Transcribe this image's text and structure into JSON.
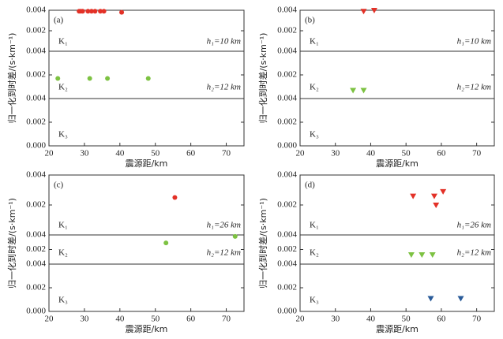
{
  "chart_data": [
    {
      "type": "scatter",
      "label": "(a)",
      "xlabel": "震源距/km",
      "ylabel": "归一化到时差/(s·km⁻¹)",
      "xlim": [
        20,
        75
      ],
      "xticks": [
        20,
        30,
        40,
        50,
        60,
        70
      ],
      "subplots": [
        {
          "name": "K₁",
          "annotation": "h₁=10 km",
          "ylim": [
            0,
            0.004
          ],
          "yticks": [
            {
              "value": 0.002,
              "label": "0.002"
            },
            {
              "value": 0.004,
              "label": "0.004"
            }
          ],
          "series": [
            {
              "color": "#e33127",
              "marker": "circle",
              "x": [
                28.5,
                29,
                29.5,
                31,
                32,
                33,
                34.5,
                35.5,
                40.5
              ],
              "values": [
                0.0039,
                0.0039,
                0.0039,
                0.0039,
                0.0039,
                0.0039,
                0.0039,
                0.0039,
                0.0038
              ]
            }
          ]
        },
        {
          "name": "K₂",
          "annotation": "h₂=12 km",
          "ylim": [
            0,
            0.004
          ],
          "yticks": [
            {
              "value": 0.002,
              "label": "0.002"
            },
            {
              "value": 0.004,
              "label": "0.004"
            }
          ],
          "series": [
            {
              "color": "#7dc242",
              "marker": "circle",
              "x": [
                22.5,
                31.5,
                36.5,
                48
              ],
              "values": [
                0.0017,
                0.0017,
                0.0017,
                0.0017
              ]
            }
          ]
        },
        {
          "name": "K₃",
          "ylim": [
            0,
            0.004
          ],
          "yticks": [
            {
              "value": 0,
              "label": "0.000"
            },
            {
              "value": 0.002,
              "label": "0.002"
            },
            {
              "value": 0.004,
              "label": "0.004"
            }
          ],
          "series": []
        }
      ]
    },
    {
      "type": "scatter",
      "label": "(b)",
      "xlabel": "震源距/km",
      "ylabel": "归一化到时差/(s·km⁻¹)",
      "xlim": [
        20,
        75
      ],
      "xticks": [
        20,
        30,
        40,
        50,
        60,
        70
      ],
      "subplots": [
        {
          "name": "K₁",
          "annotation": "h₁=10 km",
          "ylim": [
            0,
            0.004
          ],
          "yticks": [
            {
              "value": 0.002,
              "label": "0.002"
            },
            {
              "value": 0.004,
              "label": "0.004"
            }
          ],
          "series": [
            {
              "color": "#e33127",
              "marker": "triangle",
              "x": [
                38,
                41
              ],
              "values": [
                0.0039,
                0.004
              ]
            }
          ]
        },
        {
          "name": "K₂",
          "annotation": "h₂=12 km",
          "ylim": [
            0,
            0.004
          ],
          "yticks": [
            {
              "value": 0.002,
              "label": "0.002"
            },
            {
              "value": 0.004,
              "label": "0.004"
            }
          ],
          "series": [
            {
              "color": "#7dc242",
              "marker": "triangle",
              "x": [
                35,
                38
              ],
              "values": [
                0.0007,
                0.0007
              ]
            }
          ]
        },
        {
          "name": "K₃",
          "ylim": [
            0,
            0.004
          ],
          "yticks": [
            {
              "value": 0,
              "label": "0.000"
            },
            {
              "value": 0.002,
              "label": "0.002"
            },
            {
              "value": 0.004,
              "label": "0.004"
            }
          ],
          "series": []
        }
      ]
    },
    {
      "type": "scatter",
      "label": "(c)",
      "xlabel": "震源距/km",
      "ylabel": "归一化到时差/(s·km⁻¹)",
      "xlim": [
        20,
        75
      ],
      "xticks": [
        20,
        30,
        40,
        50,
        60,
        70
      ],
      "subplots": [
        {
          "name": "K₁",
          "annotation": "h₁=26 km",
          "ylim": [
            0,
            0.004
          ],
          "yticks": [
            {
              "value": 0.002,
              "label": "0.002"
            },
            {
              "value": 0.004,
              "label": "0.004"
            }
          ],
          "series": [
            {
              "color": "#e33127",
              "marker": "circle",
              "x": [
                55.5
              ],
              "values": [
                0.0025
              ]
            }
          ]
        },
        {
          "name": "K₂",
          "annotation": "h₂=12 km",
          "ylim": [
            0,
            0.004
          ],
          "yticks": [
            {
              "value": 0.002,
              "label": "0.002"
            },
            {
              "value": 0.004,
              "label": "0.004"
            }
          ],
          "series": [
            {
              "color": "#7dc242",
              "marker": "circle",
              "x": [
                53,
                72.5
              ],
              "values": [
                0.0029,
                0.0038
              ]
            }
          ]
        },
        {
          "name": "K₃",
          "ylim": [
            0,
            0.004
          ],
          "yticks": [
            {
              "value": 0,
              "label": "0.000"
            },
            {
              "value": 0.002,
              "label": "0.002"
            },
            {
              "value": 0.004,
              "label": "0.004"
            }
          ],
          "series": []
        }
      ]
    },
    {
      "type": "scatter",
      "label": "(d)",
      "xlabel": "震源距/km",
      "ylabel": "归一化到时差/(s·km⁻¹)",
      "xlim": [
        20,
        75
      ],
      "xticks": [
        20,
        30,
        40,
        50,
        60,
        70
      ],
      "subplots": [
        {
          "name": "K₁",
          "annotation": "h₁=26 km",
          "ylim": [
            0,
            0.004
          ],
          "yticks": [
            {
              "value": 0.002,
              "label": "0.002"
            },
            {
              "value": 0.004,
              "label": "0.004"
            }
          ],
          "series": [
            {
              "color": "#e33127",
              "marker": "triangle",
              "x": [
                52,
                58,
                58.5,
                60.5
              ],
              "values": [
                0.0026,
                0.0026,
                0.002,
                0.0029
              ]
            }
          ]
        },
        {
          "name": "K₂",
          "annotation": "h₂=12 km",
          "ylim": [
            0,
            0.004
          ],
          "yticks": [
            {
              "value": 0.002,
              "label": "0.002"
            },
            {
              "value": 0.004,
              "label": "0.004"
            }
          ],
          "series": [
            {
              "color": "#7dc242",
              "marker": "triangle",
              "x": [
                51.5,
                54.5,
                57.5
              ],
              "values": [
                0.0013,
                0.0013,
                0.0013
              ]
            }
          ]
        },
        {
          "name": "K₃",
          "ylim": [
            0,
            0.004
          ],
          "yticks": [
            {
              "value": 0,
              "label": "0.000"
            },
            {
              "value": 0.002,
              "label": "0.002"
            },
            {
              "value": 0.004,
              "label": "0.004"
            }
          ],
          "series": [
            {
              "color": "#2a5b99",
              "marker": "triangle",
              "x": [
                57,
                65.5
              ],
              "values": [
                0.0011,
                0.0011
              ]
            }
          ]
        }
      ]
    }
  ]
}
